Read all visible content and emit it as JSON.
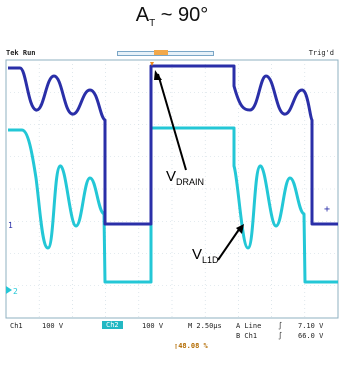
{
  "title": {
    "main": "A",
    "sub": "T",
    "suffix": " ~ 90°"
  },
  "scope": {
    "status": "Tek Run",
    "trigger_state": "Trig'd",
    "channel_markers": {
      "ch1": "1",
      "ch2": "2"
    }
  },
  "annotations": {
    "vdrain": {
      "main": "V",
      "sub": "DRAIN"
    },
    "vl1d": {
      "main": "V",
      "sub": "L1D"
    }
  },
  "readout": {
    "ch1": "Ch1",
    "ch1_scale": "100 V",
    "ch2": "Ch2",
    "ch2_scale": "100 V",
    "timebase": "M 2.50µs",
    "trig_source": "A  Line",
    "trig_slope": "∫",
    "trig_level": "7.10 V",
    "ch1_freq": "B  Ch1",
    "ch1_freq_icon": "∫",
    "ch1_freq_value": "66.0 V",
    "position": "▯48.08 %"
  },
  "colors": {
    "ch1": "#2a2fa8",
    "ch2": "#23c7d6",
    "grid": "#c9d7df",
    "accent": "#f08a1c"
  }
}
